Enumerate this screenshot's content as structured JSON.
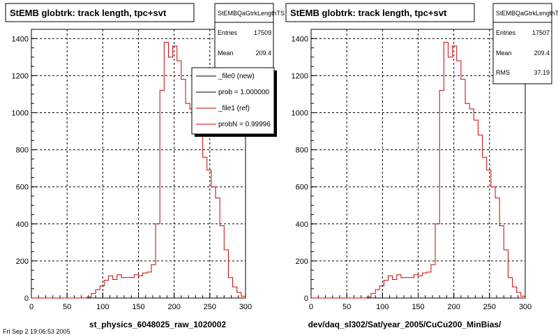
{
  "chart_data": [
    {
      "type": "histogram",
      "title": "StEMB globtrk: track length, tpc+svt",
      "stats_box": {
        "name": "StEMBQaGtrkLengthTS",
        "entries_label": "Entries",
        "entries": "17509",
        "mean_label": "Mean",
        "mean": "209.4"
      },
      "legend": {
        "entries": [
          "_file0 (new)",
          "prob = 1.000000",
          "_file1 (ref)",
          "probN = 0.99996"
        ],
        "colors": [
          "#000000",
          "#000000",
          "#cc0000",
          "#cc0000"
        ]
      },
      "xlabel": "st_physics_6048025_raw_1020002",
      "xlim": [
        0,
        300
      ],
      "ylim": [
        0,
        1450
      ],
      "xticks": [
        "0",
        "50",
        "100",
        "150",
        "200",
        "250",
        "300"
      ],
      "yticks": [
        "0",
        "200",
        "400",
        "600",
        "800",
        "1000",
        "1200",
        "1400"
      ],
      "grid": true,
      "bin_width": 6,
      "series": [
        {
          "values": [
            0,
            0,
            0,
            0,
            0,
            0,
            0,
            0,
            0,
            0,
            0,
            0,
            0,
            5,
            25,
            45,
            65,
            95,
            120,
            100,
            125,
            110,
            110,
            110,
            125,
            120,
            135,
            140,
            180,
            400,
            1120,
            1380,
            1300,
            1360,
            1280,
            1180,
            1050,
            1020,
            960,
            880,
            760,
            690,
            600,
            540,
            390,
            260,
            110,
            60,
            30,
            10
          ],
          "color": "#cc0000"
        }
      ]
    },
    {
      "type": "histogram",
      "title": "StEMB globtrk: track length, tpc+svt",
      "stats_box": {
        "name": "StEMBQaGtrkLengthTS",
        "entries_label": "Entries",
        "entries": "17507",
        "mean_label": "Mean",
        "mean": "209.4",
        "rms_label": "RMS",
        "rms": "37.19"
      },
      "xlabel": "dev/daq_sl302/Sat/year_2005/CuCu200_MinBias/",
      "xlim": [
        0,
        300
      ],
      "ylim": [
        0,
        1450
      ],
      "xticks": [
        "0",
        "50",
        "100",
        "150",
        "200",
        "250",
        "300"
      ],
      "yticks": [
        "0",
        "200",
        "400",
        "600",
        "800",
        "1000",
        "1200",
        "1400"
      ],
      "grid": true,
      "bin_width": 6,
      "series": [
        {
          "values": [
            0,
            0,
            0,
            0,
            0,
            0,
            0,
            0,
            0,
            0,
            0,
            0,
            0,
            5,
            25,
            45,
            65,
            95,
            120,
            100,
            125,
            110,
            110,
            110,
            125,
            120,
            135,
            140,
            180,
            400,
            1120,
            1380,
            1300,
            1360,
            1280,
            1180,
            1050,
            1020,
            960,
            880,
            760,
            690,
            600,
            540,
            390,
            260,
            110,
            60,
            30,
            10
          ],
          "color": "#cc0000"
        }
      ]
    }
  ],
  "footer": {
    "date_text": "Fri Sep  2 19:06:53 2005"
  }
}
